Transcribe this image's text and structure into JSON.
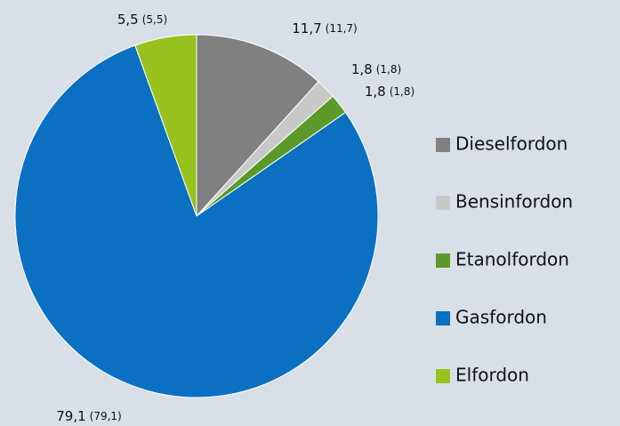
{
  "chart_data": {
    "type": "pie",
    "categories": [
      "Dieselfordon",
      "Bensinfordon",
      "Etanolfordon",
      "Gasfordon",
      "Elfordon"
    ],
    "values": [
      11.7,
      1.8,
      1.8,
      79.1,
      5.5
    ],
    "value_labels": [
      "11,7",
      "1,8",
      "1,8",
      "79,1",
      "5,5"
    ],
    "secondary_labels": [
      "(11,7)",
      "(1,8)",
      "(1,8)",
      "(79,1)",
      "(5,5)"
    ],
    "colors": [
      "#808080",
      "#c9c9c9",
      "#5b9a2a",
      "#0b70c1",
      "#99c21f"
    ],
    "legend": "right"
  }
}
